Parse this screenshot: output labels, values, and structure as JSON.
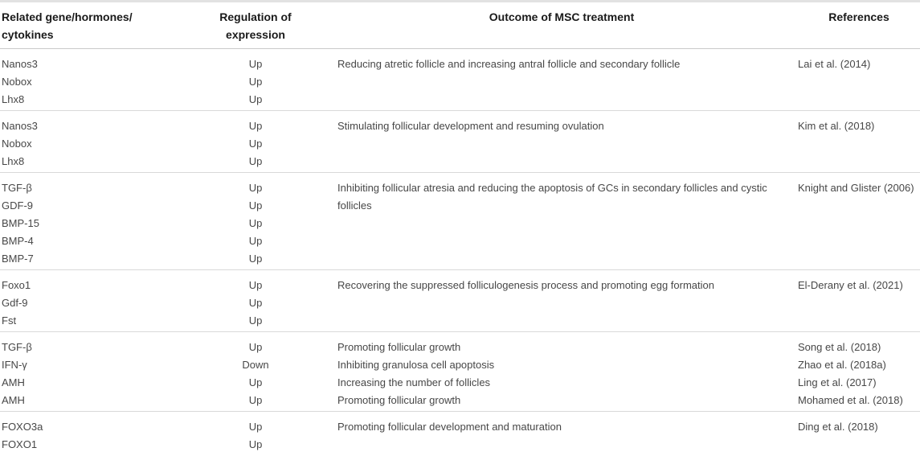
{
  "table": {
    "headers": {
      "genes": "Related gene/hormones/\ncytokines",
      "regulation": "Regulation of\nexpression",
      "outcome": "Outcome of MSC treatment",
      "references": "References"
    },
    "groups": [
      {
        "genes": [
          "Nanos3",
          "Nobox",
          "Lhx8"
        ],
        "regulation": [
          "Up",
          "Up",
          "Up"
        ],
        "outcomes": [
          "Reducing atretic follicle and increasing antral follicle and secondary follicle"
        ],
        "references": [
          "Lai et al. (2014)"
        ]
      },
      {
        "genes": [
          "Nanos3",
          "Nobox",
          "Lhx8"
        ],
        "regulation": [
          "Up",
          "Up",
          "Up"
        ],
        "outcomes": [
          "Stimulating follicular development and resuming ovulation"
        ],
        "references": [
          "Kim et al. (2018)"
        ]
      },
      {
        "genes": [
          "TGF-β",
          "GDF-9",
          "BMP-15",
          "BMP-4",
          "BMP-7"
        ],
        "regulation": [
          "Up",
          "Up",
          "Up",
          "Up",
          "Up"
        ],
        "outcomes": [
          "Inhibiting follicular atresia and reducing the apoptosis of GCs in secondary follicles and cystic follicles"
        ],
        "references": [
          "Knight and Glister (2006)"
        ]
      },
      {
        "genes": [
          "Foxo1",
          "Gdf-9",
          "Fst"
        ],
        "regulation": [
          "Up",
          "Up",
          "Up"
        ],
        "outcomes": [
          "Recovering the suppressed folliculogenesis process and promoting egg formation"
        ],
        "references": [
          "El-Derany et al. (2021)"
        ]
      },
      {
        "genes": [
          "TGF-β",
          "IFN-γ",
          "AMH",
          "AMH"
        ],
        "regulation": [
          "Up",
          "Down",
          "Up",
          "Up"
        ],
        "outcomes": [
          "Promoting follicular growth",
          "Inhibiting granulosa cell apoptosis",
          "Increasing the number of follicles",
          "Promoting follicular growth"
        ],
        "references": [
          "Song et al. (2018)",
          "Zhao et al. (2018a)",
          "Ling et al. (2017)",
          "Mohamed et al. (2018)"
        ]
      },
      {
        "genes": [
          "FOXO3a",
          "FOXO1"
        ],
        "regulation": [
          "Up",
          "Up"
        ],
        "outcomes": [
          "Promoting follicular development and maturation"
        ],
        "references": [
          "Ding et al. (2018)"
        ]
      }
    ]
  },
  "colors": {
    "header_text": "#1a1a1a",
    "body_text": "#474747",
    "outer_border": "#e2e2e2",
    "header_divider": "#c9c9c9",
    "group_divider": "#d9d9d9",
    "background": "#ffffff"
  }
}
